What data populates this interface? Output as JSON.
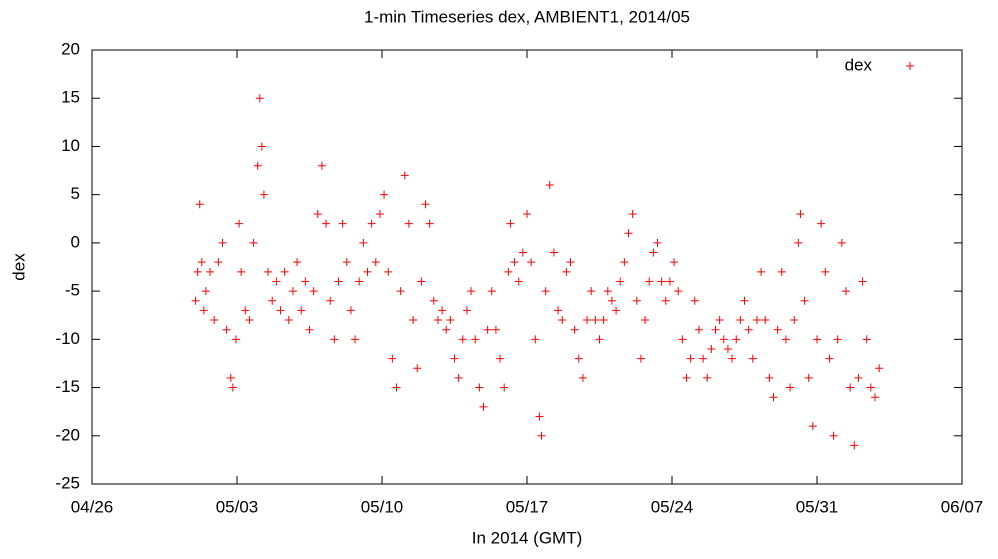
{
  "chart_data": {
    "type": "scatter",
    "title": "1-min Timeseries dex, AMBIENT1, 2014/05",
    "x_label": "In 2014 (GMT)",
    "y_label": "dex",
    "legend_position": "top-right",
    "xlim": [
      -4,
      38
    ],
    "xticks": [
      {
        "value": -4,
        "label": "04/26"
      },
      {
        "value": 3,
        "label": "05/03"
      },
      {
        "value": 10,
        "label": "05/10"
      },
      {
        "value": 17,
        "label": "05/17"
      },
      {
        "value": 24,
        "label": "05/24"
      },
      {
        "value": 31,
        "label": "05/31"
      },
      {
        "value": 38,
        "label": "06/07"
      }
    ],
    "ylim": [
      -25,
      20
    ],
    "yticks": [
      -25,
      -20,
      -15,
      -10,
      -5,
      0,
      5,
      10,
      15,
      20
    ],
    "series": [
      {
        "name": "dex",
        "color": "#ff0000",
        "x": [
          1.0,
          1.1,
          1.2,
          1.3,
          1.4,
          1.5,
          1.7,
          1.9,
          2.1,
          2.3,
          2.5,
          2.7,
          2.8,
          2.95,
          3.1,
          3.2,
          3.4,
          3.6,
          3.8,
          4.0,
          4.1,
          4.2,
          4.3,
          4.5,
          4.7,
          4.9,
          5.1,
          5.3,
          5.5,
          5.7,
          5.9,
          6.1,
          6.3,
          6.5,
          6.7,
          6.9,
          7.1,
          7.3,
          7.5,
          7.7,
          7.9,
          8.1,
          8.3,
          8.5,
          8.7,
          8.9,
          9.1,
          9.3,
          9.5,
          9.7,
          9.9,
          10.1,
          10.3,
          10.5,
          10.7,
          10.9,
          11.1,
          11.3,
          11.5,
          11.7,
          11.9,
          12.1,
          12.3,
          12.5,
          12.7,
          12.9,
          13.1,
          13.3,
          13.5,
          13.7,
          13.9,
          14.1,
          14.3,
          14.5,
          14.7,
          14.9,
          15.1,
          15.3,
          15.5,
          15.7,
          15.9,
          16.1,
          16.2,
          16.4,
          16.6,
          16.8,
          17.0,
          17.2,
          17.4,
          17.6,
          17.7,
          17.9,
          18.1,
          18.3,
          18.5,
          18.7,
          18.9,
          19.1,
          19.3,
          19.5,
          19.7,
          19.9,
          20.1,
          20.3,
          20.5,
          20.7,
          20.9,
          21.1,
          21.3,
          21.5,
          21.7,
          21.9,
          22.1,
          22.3,
          22.5,
          22.7,
          22.9,
          23.1,
          23.3,
          23.5,
          23.7,
          23.9,
          24.1,
          24.3,
          24.5,
          24.7,
          24.9,
          25.1,
          25.3,
          25.5,
          25.7,
          25.9,
          26.1,
          26.3,
          26.5,
          26.7,
          26.9,
          27.1,
          27.3,
          27.5,
          27.7,
          27.9,
          28.1,
          28.3,
          28.5,
          28.7,
          28.9,
          29.1,
          29.3,
          29.5,
          29.7,
          29.9,
          30.1,
          30.2,
          30.4,
          30.6,
          30.8,
          31.0,
          31.2,
          31.4,
          31.6,
          31.8,
          32.0,
          32.2,
          32.4,
          32.6,
          32.8,
          33.0,
          33.2,
          33.4,
          33.6,
          33.8,
          34.0
        ],
        "values": [
          -6,
          -3,
          4,
          -2,
          -7,
          -5,
          -3,
          -8,
          -2,
          0,
          -9,
          -14,
          -15,
          -10,
          2,
          -3,
          -7,
          -8,
          0,
          8,
          15,
          10,
          5,
          -3,
          -6,
          -4,
          -7,
          -3,
          -8,
          -5,
          -2,
          -7,
          -4,
          -9,
          -5,
          3,
          8,
          2,
          -6,
          -10,
          -4,
          2,
          -2,
          -7,
          -10,
          -4,
          0,
          -3,
          2,
          -2,
          3,
          5,
          -3,
          -12,
          -15,
          -5,
          7,
          2,
          -8,
          -13,
          -4,
          4,
          2,
          -6,
          -8,
          -7,
          -9,
          -8,
          -12,
          -14,
          -10,
          -7,
          -5,
          -10,
          -15,
          -17,
          -9,
          -5,
          -9,
          -12,
          -15,
          -3,
          2,
          -2,
          -4,
          -1,
          3,
          -2,
          -10,
          -18,
          -20,
          -5,
          6,
          -1,
          -7,
          -8,
          -3,
          -2,
          -9,
          -12,
          -14,
          -8,
          -5,
          -8,
          -10,
          -8,
          -5,
          -6,
          -7,
          -4,
          -2,
          1,
          3,
          -6,
          -12,
          -8,
          -4,
          -1,
          0,
          -4,
          -6,
          -4,
          -2,
          -5,
          -10,
          -14,
          -12,
          -6,
          -9,
          -12,
          -14,
          -11,
          -9,
          -8,
          -10,
          -11,
          -12,
          -10,
          -8,
          -6,
          -9,
          -12,
          -8,
          -3,
          -8,
          -14,
          -16,
          -9,
          -3,
          -10,
          -15,
          -8,
          0,
          3,
          -6,
          -14,
          -19,
          -10,
          2,
          -3,
          -12,
          -20,
          -10,
          0,
          -5,
          -15,
          -21,
          -14,
          -4,
          -10,
          -15,
          -16,
          -13
        ]
      }
    ]
  }
}
